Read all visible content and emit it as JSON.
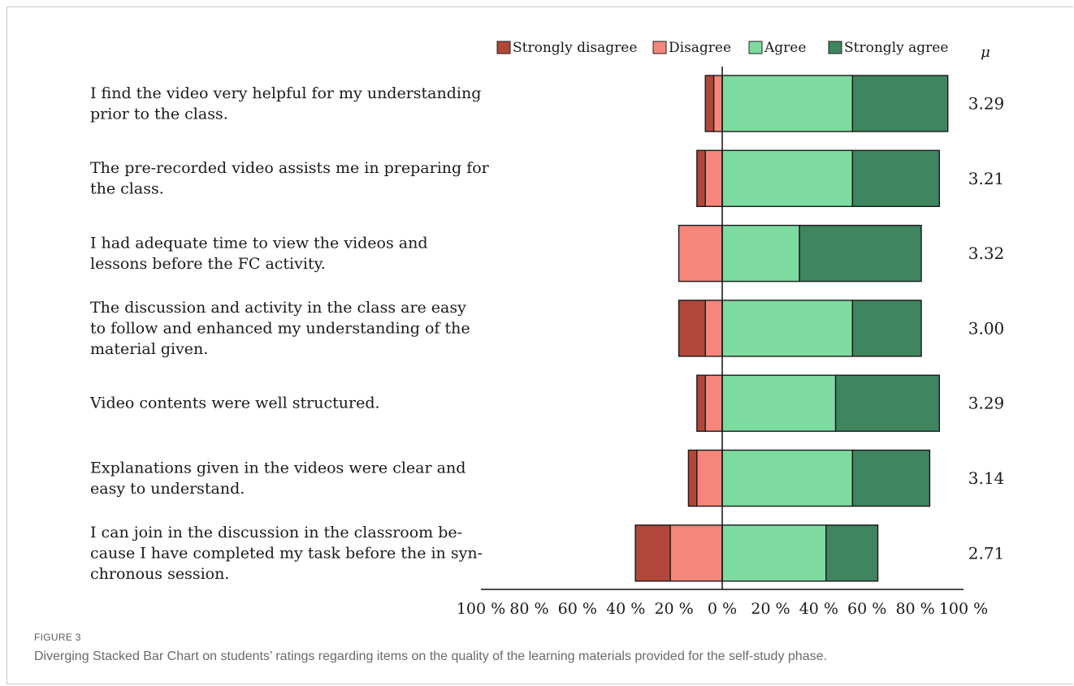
{
  "figure": {
    "label": "FIGURE 3",
    "caption": "Diverging Stacked Bar Chart on students’ ratings regarding items on the quality of the learning materials provided for the self-study phase."
  },
  "chart_data": {
    "type": "bar",
    "orientation": "horizontal-diverging-stacked",
    "legend_position": "top",
    "mean_header": "μ",
    "x_range": [
      -100,
      100
    ],
    "x_ticks": [
      "100 %",
      "80 %",
      "60 %",
      "40 %",
      "20 %",
      "0 %",
      "20 %",
      "40 %",
      "60 %",
      "80 %",
      "100 %"
    ],
    "series": [
      {
        "name": "Strongly disagree",
        "color": "#b24638",
        "side": "negative"
      },
      {
        "name": "Disagree",
        "color": "#f6857a",
        "side": "negative"
      },
      {
        "name": "Agree",
        "color": "#7ddba0",
        "side": "positive"
      },
      {
        "name": "Strongly agree",
        "color": "#3e8560",
        "side": "positive"
      }
    ],
    "items": [
      {
        "lines": [
          "I find the video very helpful for my understanding",
          "prior to the class."
        ],
        "values": [
          3.5,
          3.5,
          54,
          39.5
        ],
        "mean": "3.29"
      },
      {
        "lines": [
          "The pre-recorded video assists me in preparing for",
          "the class."
        ],
        "values": [
          3.5,
          7,
          54,
          36
        ],
        "mean": "3.21"
      },
      {
        "lines": [
          "I had adequate time to view the videos and",
          "lessons before the FC activity."
        ],
        "values": [
          0,
          18,
          32,
          50.5
        ],
        "mean": "3.32"
      },
      {
        "lines": [
          "The discussion and activity in the class are easy",
          "to follow and enhanced my understanding of the",
          "material given."
        ],
        "values": [
          11,
          7,
          54,
          28.5
        ],
        "mean": "3.00"
      },
      {
        "lines": [
          "Video contents were well structured."
        ],
        "values": [
          3.5,
          7,
          47,
          43
        ],
        "mean": "3.29"
      },
      {
        "lines": [
          "Explanations given in the videos were clear and",
          "easy to understand."
        ],
        "values": [
          3.5,
          10.5,
          54,
          32
        ],
        "mean": "3.14"
      },
      {
        "lines": [
          "I can join in the discussion in the classroom be-",
          "cause I have completed my task before the in syn-",
          "chronous session."
        ],
        "values": [
          14.5,
          21.5,
          43,
          21.5
        ],
        "mean": "2.71"
      }
    ]
  }
}
